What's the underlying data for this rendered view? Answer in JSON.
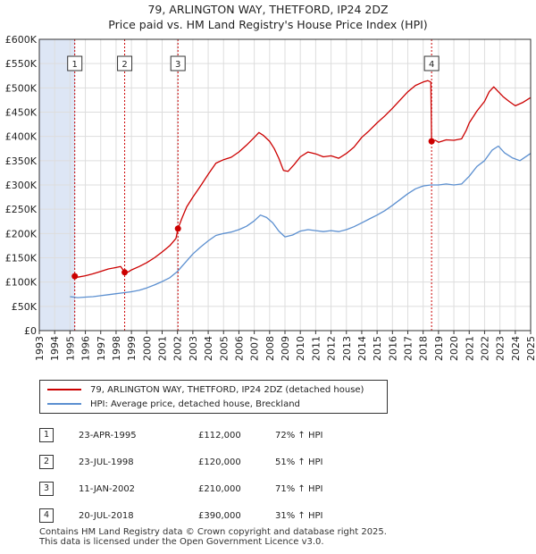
{
  "title_line1": "79, ARLINGTON WAY, THETFORD, IP24 2DZ",
  "title_line2": "Price paid vs. HM Land Registry's House Price Index (HPI)",
  "colors": {
    "property": "#cc0000",
    "hpi": "#5b8fd0",
    "band": "#dde6f5",
    "grid": "#dddddd"
  },
  "chart_data": {
    "type": "line",
    "x_range": [
      1993,
      2025
    ],
    "ylim": [
      0,
      600000
    ],
    "y_ticks": [
      {
        "value": 0,
        "label": "£0"
      },
      {
        "value": 50000,
        "label": "£50K"
      },
      {
        "value": 100000,
        "label": "£100K"
      },
      {
        "value": 150000,
        "label": "£150K"
      },
      {
        "value": 200000,
        "label": "£200K"
      },
      {
        "value": 250000,
        "label": "£250K"
      },
      {
        "value": 300000,
        "label": "£300K"
      },
      {
        "value": 350000,
        "label": "£350K"
      },
      {
        "value": 400000,
        "label": "£400K"
      },
      {
        "value": 450000,
        "label": "£450K"
      },
      {
        "value": 500000,
        "label": "£500K"
      },
      {
        "value": 550000,
        "label": "£550K"
      },
      {
        "value": 600000,
        "label": "£600K"
      }
    ],
    "x_ticks": [
      "1993",
      "1994",
      "1995",
      "1996",
      "1997",
      "1998",
      "1999",
      "2000",
      "2001",
      "2002",
      "2003",
      "2004",
      "2005",
      "2006",
      "2007",
      "2008",
      "2009",
      "2010",
      "2011",
      "2012",
      "2013",
      "2014",
      "2015",
      "2016",
      "2017",
      "2018",
      "2019",
      "2020",
      "2021",
      "2022",
      "2023",
      "2024",
      "2025"
    ],
    "shaded_until": 1995.3,
    "series": [
      {
        "name": "79, ARLINGTON WAY, THETFORD, IP24 2DZ (detached house)",
        "color": "#cc0000",
        "points": [
          [
            1995.31,
            112000
          ],
          [
            1995.5,
            110000
          ],
          [
            1996.0,
            113000
          ],
          [
            1996.5,
            117000
          ],
          [
            1997.0,
            122000
          ],
          [
            1997.5,
            127000
          ],
          [
            1998.0,
            130000
          ],
          [
            1998.3,
            132000
          ],
          [
            1998.56,
            120000
          ],
          [
            1998.8,
            121000
          ],
          [
            1999.0,
            125000
          ],
          [
            1999.5,
            132000
          ],
          [
            2000.0,
            140000
          ],
          [
            2000.5,
            150000
          ],
          [
            2001.0,
            162000
          ],
          [
            2001.5,
            175000
          ],
          [
            2001.9,
            190000
          ],
          [
            2002.03,
            210000
          ],
          [
            2002.3,
            232000
          ],
          [
            2002.6,
            255000
          ],
          [
            2003.0,
            275000
          ],
          [
            2003.5,
            298000
          ],
          [
            2004.0,
            322000
          ],
          [
            2004.5,
            345000
          ],
          [
            2005.0,
            352000
          ],
          [
            2005.5,
            357000
          ],
          [
            2006.0,
            368000
          ],
          [
            2006.5,
            382000
          ],
          [
            2007.0,
            398000
          ],
          [
            2007.3,
            408000
          ],
          [
            2007.6,
            402000
          ],
          [
            2008.0,
            390000
          ],
          [
            2008.3,
            375000
          ],
          [
            2008.6,
            355000
          ],
          [
            2008.9,
            330000
          ],
          [
            2009.2,
            328000
          ],
          [
            2009.6,
            342000
          ],
          [
            2010.0,
            358000
          ],
          [
            2010.5,
            368000
          ],
          [
            2011.0,
            364000
          ],
          [
            2011.5,
            358000
          ],
          [
            2012.0,
            360000
          ],
          [
            2012.5,
            355000
          ],
          [
            2013.0,
            365000
          ],
          [
            2013.5,
            378000
          ],
          [
            2014.0,
            398000
          ],
          [
            2014.5,
            412000
          ],
          [
            2015.0,
            428000
          ],
          [
            2015.5,
            442000
          ],
          [
            2016.0,
            458000
          ],
          [
            2016.5,
            475000
          ],
          [
            2017.0,
            492000
          ],
          [
            2017.5,
            505000
          ],
          [
            2018.0,
            512000
          ],
          [
            2018.3,
            515000
          ],
          [
            2018.5,
            512000
          ],
          [
            2018.55,
            390000
          ],
          [
            2018.8,
            392000
          ],
          [
            2019.0,
            388000
          ],
          [
            2019.5,
            393000
          ],
          [
            2020.0,
            392000
          ],
          [
            2020.5,
            395000
          ],
          [
            2020.8,
            412000
          ],
          [
            2021.0,
            428000
          ],
          [
            2021.5,
            452000
          ],
          [
            2022.0,
            472000
          ],
          [
            2022.3,
            492000
          ],
          [
            2022.6,
            502000
          ],
          [
            2022.9,
            492000
          ],
          [
            2023.2,
            482000
          ],
          [
            2023.6,
            472000
          ],
          [
            2024.0,
            463000
          ],
          [
            2024.5,
            470000
          ],
          [
            2025.0,
            480000
          ]
        ]
      },
      {
        "name": "HPI: Average price, detached house, Breckland",
        "color": "#5b8fd0",
        "points": [
          [
            1995.0,
            70000
          ],
          [
            1995.5,
            68000
          ],
          [
            1996.0,
            69000
          ],
          [
            1996.5,
            70000
          ],
          [
            1997.0,
            72000
          ],
          [
            1997.5,
            74000
          ],
          [
            1998.0,
            76000
          ],
          [
            1998.5,
            78000
          ],
          [
            1999.0,
            80000
          ],
          [
            1999.5,
            83000
          ],
          [
            2000.0,
            88000
          ],
          [
            2000.5,
            94000
          ],
          [
            2001.0,
            101000
          ],
          [
            2001.5,
            109000
          ],
          [
            2002.0,
            122000
          ],
          [
            2002.5,
            140000
          ],
          [
            2003.0,
            158000
          ],
          [
            2003.5,
            172000
          ],
          [
            2004.0,
            185000
          ],
          [
            2004.5,
            196000
          ],
          [
            2005.0,
            200000
          ],
          [
            2005.5,
            203000
          ],
          [
            2006.0,
            208000
          ],
          [
            2006.5,
            215000
          ],
          [
            2007.0,
            226000
          ],
          [
            2007.4,
            238000
          ],
          [
            2007.8,
            233000
          ],
          [
            2008.2,
            222000
          ],
          [
            2008.6,
            205000
          ],
          [
            2009.0,
            193000
          ],
          [
            2009.5,
            197000
          ],
          [
            2010.0,
            205000
          ],
          [
            2010.5,
            208000
          ],
          [
            2011.0,
            206000
          ],
          [
            2011.5,
            204000
          ],
          [
            2012.0,
            206000
          ],
          [
            2012.5,
            204000
          ],
          [
            2013.0,
            208000
          ],
          [
            2013.5,
            214000
          ],
          [
            2014.0,
            222000
          ],
          [
            2014.5,
            230000
          ],
          [
            2015.0,
            238000
          ],
          [
            2015.5,
            247000
          ],
          [
            2016.0,
            258000
          ],
          [
            2016.5,
            270000
          ],
          [
            2017.0,
            282000
          ],
          [
            2017.5,
            292000
          ],
          [
            2018.0,
            298000
          ],
          [
            2018.5,
            300000
          ],
          [
            2019.0,
            300000
          ],
          [
            2019.5,
            302000
          ],
          [
            2020.0,
            300000
          ],
          [
            2020.5,
            302000
          ],
          [
            2021.0,
            318000
          ],
          [
            2021.5,
            338000
          ],
          [
            2022.0,
            350000
          ],
          [
            2022.5,
            372000
          ],
          [
            2022.9,
            380000
          ],
          [
            2023.3,
            366000
          ],
          [
            2023.8,
            356000
          ],
          [
            2024.3,
            350000
          ],
          [
            2025.0,
            365000
          ]
        ]
      }
    ],
    "sales": [
      {
        "label": "1",
        "x": 1995.31,
        "y": 112000
      },
      {
        "label": "2",
        "x": 1998.56,
        "y": 120000
      },
      {
        "label": "3",
        "x": 2002.03,
        "y": 210000
      },
      {
        "label": "4",
        "x": 2018.55,
        "y": 390000
      }
    ]
  },
  "legend": {
    "property": "79, ARLINGTON WAY, THETFORD, IP24 2DZ (detached house)",
    "hpi": "HPI: Average price, detached house, Breckland"
  },
  "sales_table": [
    {
      "num": "1",
      "date": "23-APR-1995",
      "price": "£112,000",
      "hpi": "72% ↑ HPI"
    },
    {
      "num": "2",
      "date": "23-JUL-1998",
      "price": "£120,000",
      "hpi": "51% ↑ HPI"
    },
    {
      "num": "3",
      "date": "11-JAN-2002",
      "price": "£210,000",
      "hpi": "71% ↑ HPI"
    },
    {
      "num": "4",
      "date": "20-JUL-2018",
      "price": "£390,000",
      "hpi": "31% ↑ HPI"
    }
  ],
  "footer_line1": "Contains HM Land Registry data © Crown copyright and database right 2025.",
  "footer_line2": "This data is licensed under the Open Government Licence v3.0."
}
